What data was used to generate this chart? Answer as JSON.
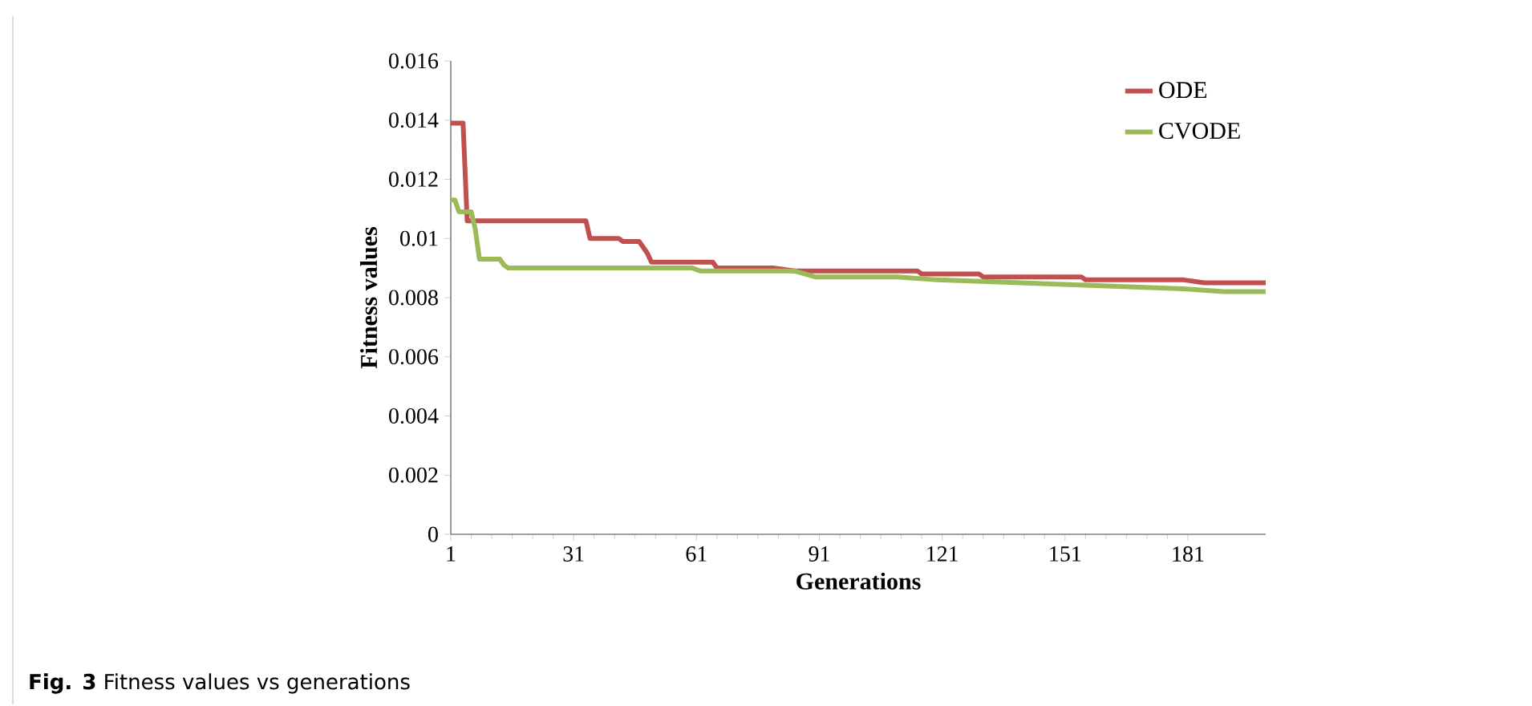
{
  "chart_data": {
    "type": "line",
    "xlabel": "Generations",
    "ylabel": "Fitness values",
    "annotations": [
      "**Fig. 3** Fitness values vs generations"
    ],
    "xlim": [
      1,
      200
    ],
    "ylim": [
      0,
      0.016
    ],
    "xticks": [
      1,
      31,
      61,
      91,
      121,
      151,
      181
    ],
    "yticks": [
      0,
      0.002,
      0.004,
      0.006,
      0.008,
      0.01,
      0.012,
      0.014,
      0.016
    ],
    "legend": "top right",
    "grid": false,
    "marker": "none",
    "line_style": "solid",
    "series": [
      {
        "name": "ODE",
        "color": "#c0504d",
        "x": [
          1,
          4,
          5,
          34,
          35,
          42,
          43,
          47,
          48,
          49,
          50,
          65,
          66,
          80,
          85,
          100,
          115,
          116,
          130,
          131,
          155,
          156,
          180,
          185,
          200
        ],
        "values": [
          0.0139,
          0.0139,
          0.0106,
          0.0106,
          0.01,
          0.01,
          0.0099,
          0.0099,
          0.0097,
          0.0095,
          0.0092,
          0.0092,
          0.009,
          0.009,
          0.0089,
          0.0089,
          0.0089,
          0.0088,
          0.0088,
          0.0087,
          0.0087,
          0.0086,
          0.0086,
          0.0085,
          0.0085
        ]
      },
      {
        "name": "CVODE",
        "color": "#9bbb59",
        "x": [
          1,
          2,
          3,
          6,
          7,
          8,
          13,
          14,
          15,
          60,
          62,
          85,
          90,
          110,
          120,
          140,
          160,
          180,
          190,
          200
        ],
        "values": [
          0.0113,
          0.0113,
          0.0109,
          0.0109,
          0.0103,
          0.0093,
          0.0093,
          0.0091,
          0.009,
          0.009,
          0.0089,
          0.0089,
          0.0087,
          0.0087,
          0.0086,
          0.0085,
          0.0084,
          0.0083,
          0.0082,
          0.0082
        ]
      }
    ]
  }
}
